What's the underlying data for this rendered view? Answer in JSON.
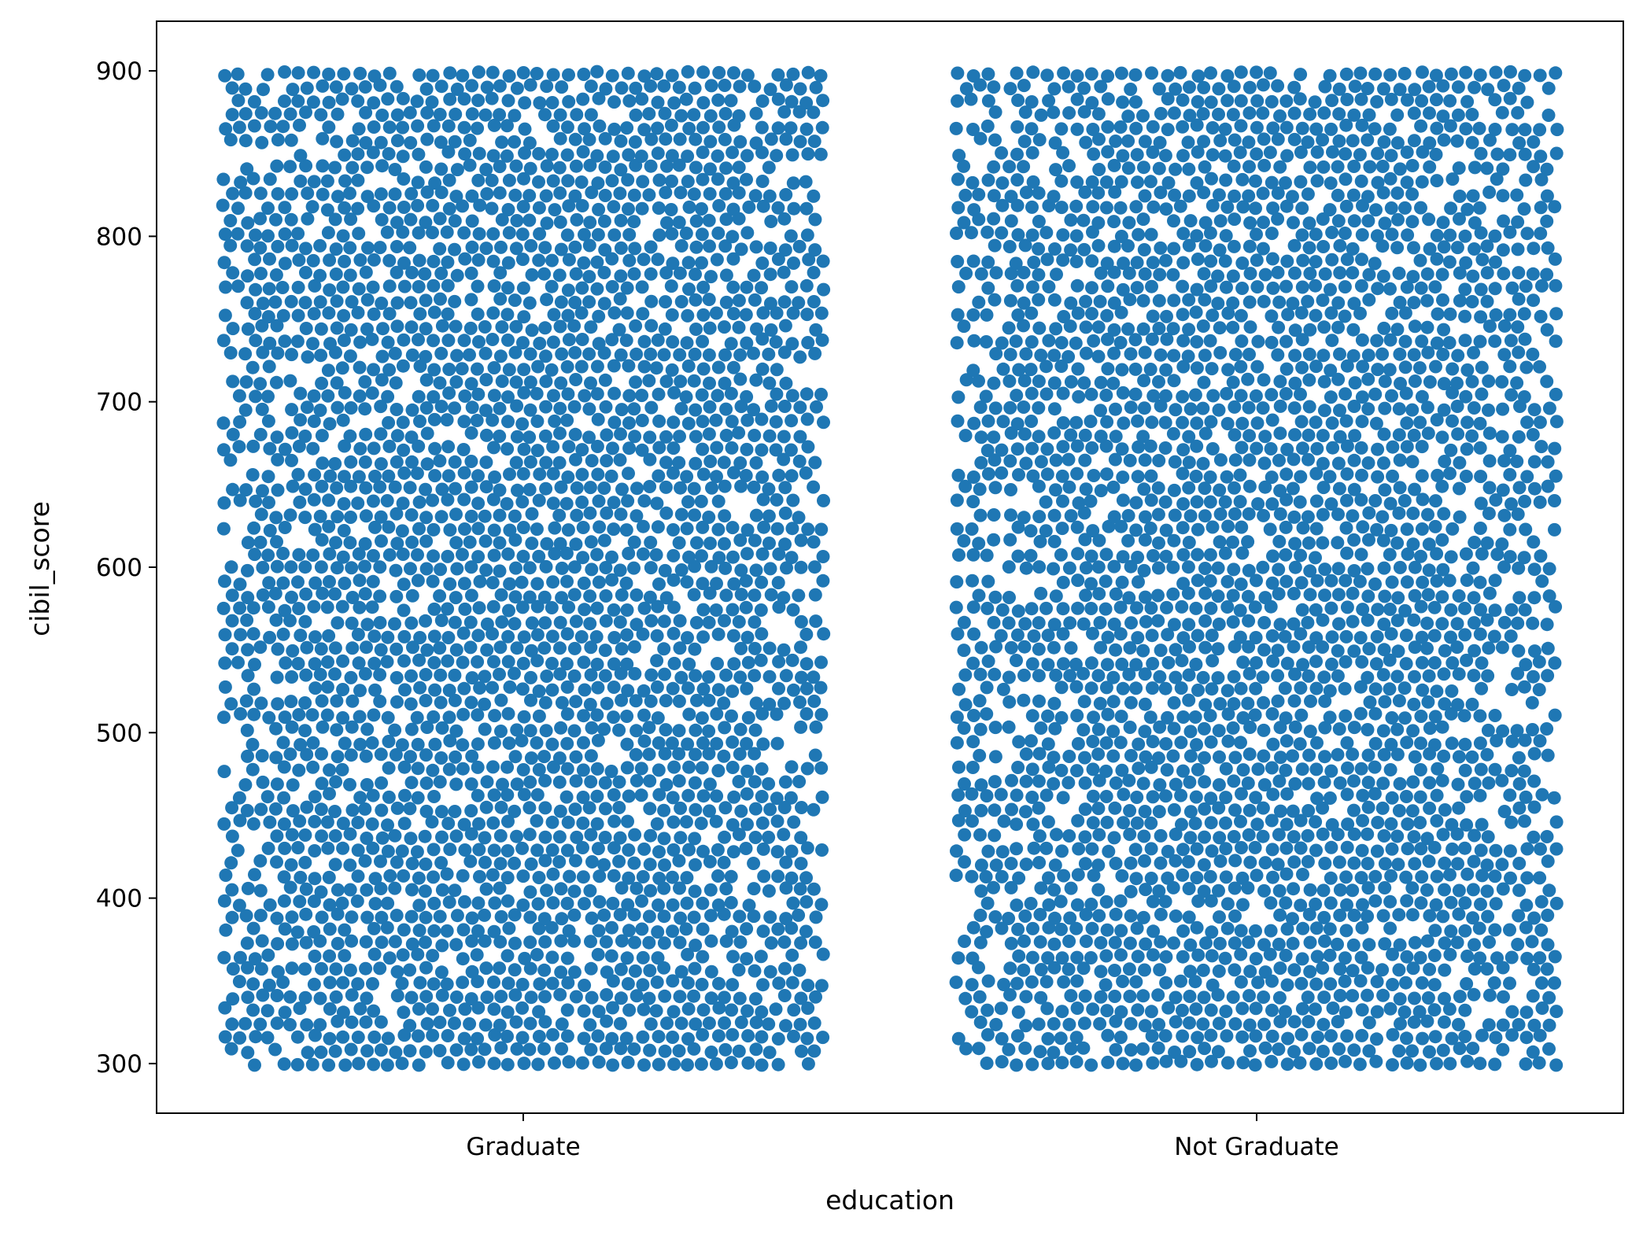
{
  "chart_data": {
    "type": "scatter",
    "subtype": "swarm",
    "title": "",
    "xlabel": "education",
    "ylabel": "cibil_score",
    "categories": [
      "Graduate",
      "Not Graduate"
    ],
    "ylim": [
      270,
      930
    ],
    "yticks": [
      300,
      400,
      500,
      600,
      700,
      800,
      900
    ],
    "ytick_labels": [
      "300",
      "400",
      "500",
      "600",
      "700",
      "800",
      "900"
    ],
    "value_range": [
      300,
      900
    ],
    "grid": false,
    "legend": "none",
    "marker_color": "#1f77b4",
    "series": [
      {
        "category": "Graduate",
        "approx_point_count": 2144,
        "density_profile": [
          {
            "range": [
              300,
              340
            ],
            "relative_density": "high"
          },
          {
            "range": [
              340,
              500
            ],
            "relative_density": "high"
          },
          {
            "range": [
              500,
              700
            ],
            "relative_density": "high"
          },
          {
            "range": [
              700,
              900
            ],
            "relative_density": "high"
          }
        ]
      },
      {
        "category": "Not Graduate",
        "approx_point_count": 2125,
        "density_profile": [
          {
            "range": [
              300,
              340
            ],
            "relative_density": "high"
          },
          {
            "range": [
              340,
              500
            ],
            "relative_density": "high"
          },
          {
            "range": [
              500,
              700
            ],
            "relative_density": "high"
          },
          {
            "range": [
              700,
              900
            ],
            "relative_density": "high"
          }
        ]
      }
    ]
  }
}
